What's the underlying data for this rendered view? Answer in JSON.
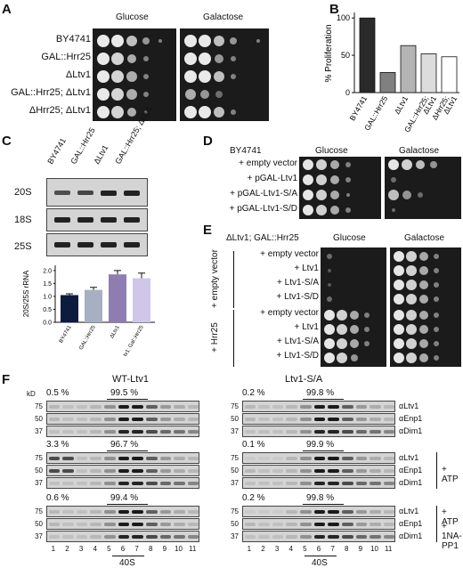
{
  "panelA": {
    "label": "A",
    "cond_glucose": "Glucose",
    "cond_galactose": "Galactose",
    "strains": [
      "BY4741",
      "GAL::Hrr25",
      "ΔLtv1",
      "GAL::Hrr25; ΔLtv1",
      "ΔHrr25; ΔLtv1"
    ]
  },
  "panelB": {
    "label": "B",
    "chart_data": {
      "type": "bar",
      "categories": [
        "BY4741",
        "GAL::Hrr25",
        "ΔLtv1",
        "GAL::Hrr25; ΔLtv1",
        "ΔHrr25; ΔLtv1"
      ],
      "values": [
        100,
        27,
        63,
        52,
        48
      ],
      "colors": [
        "#2a2a2a",
        "#808080",
        "#b4b4b4",
        "#dcdcdc",
        "#ffffff"
      ],
      "ylabel": "% Proliferation",
      "yticks": [
        0,
        50,
        100
      ],
      "ylim": [
        0,
        105
      ]
    }
  },
  "panelC": {
    "label": "C",
    "lanes": [
      "BY4741",
      "GAL::Hrr25",
      "ΔLtv1",
      "GAL::Hrr25; ΔLtv1"
    ],
    "rows": [
      "20S",
      "18S",
      "25S"
    ],
    "chart_data": {
      "type": "bar",
      "categories": [
        "BY4741",
        "GAL::Hrr25",
        "ΔLtv1",
        "ΔLtv1; Gal::Hrr25"
      ],
      "values": [
        1.05,
        1.25,
        1.85,
        1.7
      ],
      "errors": [
        0.05,
        0.1,
        0.15,
        0.2
      ],
      "colors": [
        "#0d1b3e",
        "#a7afc2",
        "#8f7db2",
        "#cfc6ea"
      ],
      "ylabel": "20S/25S rRNA",
      "yticks": [
        "0.0",
        "0.5",
        "1.0",
        "1.5",
        "2.0"
      ],
      "ylim": [
        0,
        2.2
      ]
    }
  },
  "panelD": {
    "label": "D",
    "strain": "BY4741",
    "cond_glucose": "Glucose",
    "cond_galactose": "Galactose",
    "rows": [
      "+ empty vector",
      "+ pGAL-Ltv1",
      "+ pGAL-Ltv1-S/A",
      "+ pGAL-Ltv1-S/D"
    ]
  },
  "panelE": {
    "label": "E",
    "strain": "ΔLtv1; GAL::Hrr25",
    "cond_glucose": "Glucose",
    "cond_galactose": "Galactose",
    "group1": "+ empty vector",
    "group2": "+ Hrr25",
    "rows": [
      "+ empty vector",
      "+ Ltv1",
      "+ Ltv1-S/A",
      "+ Ltv1-S/D"
    ]
  },
  "panelF": {
    "label": "F",
    "left_title": "WT-Ltv1",
    "right_title": "Ltv1-S/A",
    "kd": "kD",
    "mw": [
      "75",
      "50",
      "37"
    ],
    "antibodies": [
      "αLtv1",
      "αEnp1",
      "αDim1"
    ],
    "atp": "+ ATP",
    "inhibitor": "+ 1NA-PP1",
    "fractions": [
      "1",
      "2",
      "3",
      "4",
      "5",
      "6",
      "7",
      "8",
      "9",
      "10",
      "11"
    ],
    "peak": "40S",
    "left_pct": [
      [
        "0.5 %",
        "99.5 %"
      ],
      [
        "3.3 %",
        "96.7 %"
      ],
      [
        "0.6 %",
        "99.4 %"
      ]
    ],
    "right_pct": [
      [
        "0.2 %",
        "99.8 %"
      ],
      [
        "0.1 %",
        "99.9 %"
      ],
      [
        "0.2 %",
        "99.8 %"
      ]
    ]
  }
}
